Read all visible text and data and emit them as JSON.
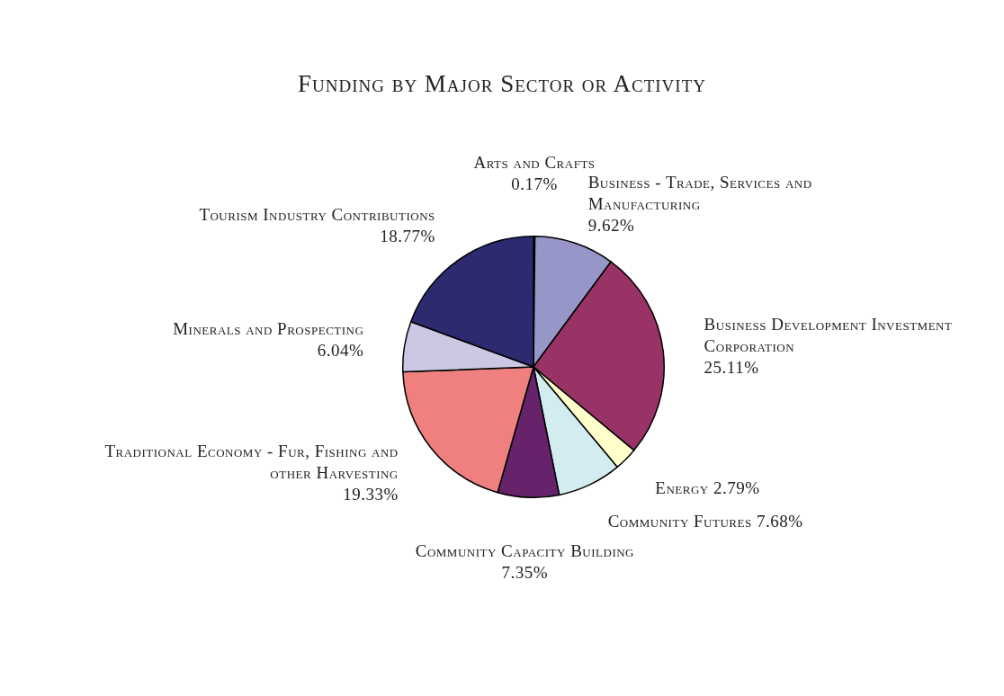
{
  "chart_data": {
    "type": "pie",
    "title": "Funding by Major Sector or Activity",
    "categories": [
      "Arts and Crafts",
      "Business - Trade, Services and Manufacturing",
      "Business Development Investment Corporation",
      "Energy",
      "Community Futures",
      "Community Capacity Building",
      "Traditional Economy - Fur, Fishing and other Harvesting",
      "Minerals and Prospecting",
      "Tourism Industry Contributions"
    ],
    "values": [
      0.17,
      9.62,
      25.11,
      2.79,
      7.68,
      7.35,
      19.33,
      6.04,
      18.77
    ],
    "colors": [
      "#fbf7ee",
      "#9696c8",
      "#993366",
      "#ffffcc",
      "#d2ecf0",
      "#66226a",
      "#f08080",
      "#ccc8e4",
      "#2e2a70"
    ],
    "value_labels": [
      "0.17%",
      "9.62%",
      "25.11%",
      "2.79%",
      "7.68%",
      "7.35%",
      "19.33%",
      "6.04%",
      "18.77%"
    ],
    "legend": false
  }
}
